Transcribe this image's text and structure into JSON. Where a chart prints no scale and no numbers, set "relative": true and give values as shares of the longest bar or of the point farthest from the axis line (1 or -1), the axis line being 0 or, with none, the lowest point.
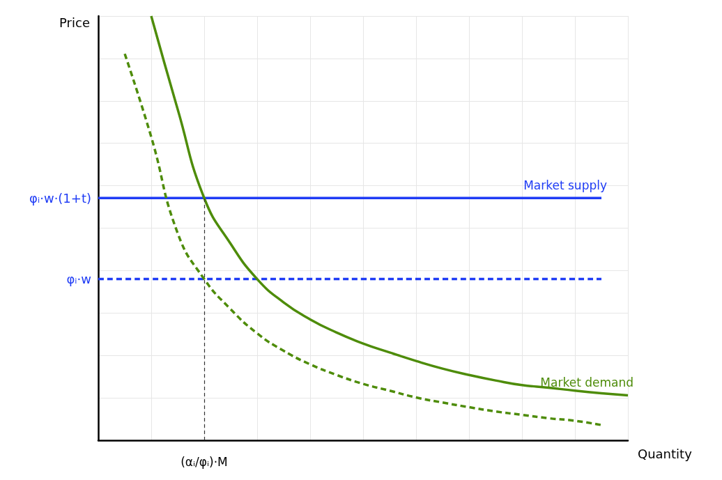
{
  "chart_data": {
    "type": "line",
    "relative": true,
    "xlabel": "Quantity",
    "ylabel": "Price",
    "categories": [
      null,
      null,
      null,
      null,
      null,
      null,
      null,
      null,
      null,
      null,
      null,
      null,
      null,
      null,
      null,
      null,
      null,
      null,
      null,
      null,
      null
    ],
    "series": [
      {
        "name": "Market supply",
        "color": "#1f3cf5",
        "line_style": "solid",
        "values": [
          0.571,
          0.571,
          0.571,
          0.571,
          0.571,
          0.571,
          0.571,
          0.571,
          0.571,
          0.571,
          0.571,
          0.571,
          0.571,
          0.571,
          0.571,
          0.571,
          0.571,
          0.571,
          0.571,
          0.571,
          null
        ]
      },
      {
        "color": "#1f3cf5",
        "line_style": "dashed",
        "values": [
          0.38,
          0.38,
          0.38,
          0.38,
          0.38,
          0.38,
          0.38,
          0.38,
          0.38,
          0.38,
          0.38,
          0.38,
          0.38,
          0.38,
          0.38,
          0.38,
          0.38,
          0.38,
          0.38,
          0.38,
          null
        ]
      },
      {
        "name": "Market demand",
        "color": "#4e8c0a",
        "line_style": "solid",
        "values": [
          null,
          null,
          1,
          0.78,
          0.571,
          0.463,
          0.38,
          0.325,
          0.285,
          0.254,
          0.228,
          0.207,
          0.187,
          0.169,
          0.154,
          0.141,
          0.13,
          0.124,
          0.117,
          0.111,
          0.106
        ]
      },
      {
        "color": "#4e8c0a",
        "line_style": "dashed",
        "values": [
          null,
          0.911,
          0.715,
          0.488,
          0.38,
          0.309,
          0.252,
          0.211,
          0.179,
          0.154,
          0.133,
          0.117,
          0.101,
          0.089,
          0.078,
          0.068,
          0.06,
          0.052,
          0.046,
          0.036,
          null
        ]
      }
    ],
    "annotations": [
      "φᵢ·w·(1+t)",
      "φᵢ·w",
      "(αᵢ/φᵢ)·M"
    ],
    "grid": true,
    "marker": "none",
    "legend": false
  }
}
